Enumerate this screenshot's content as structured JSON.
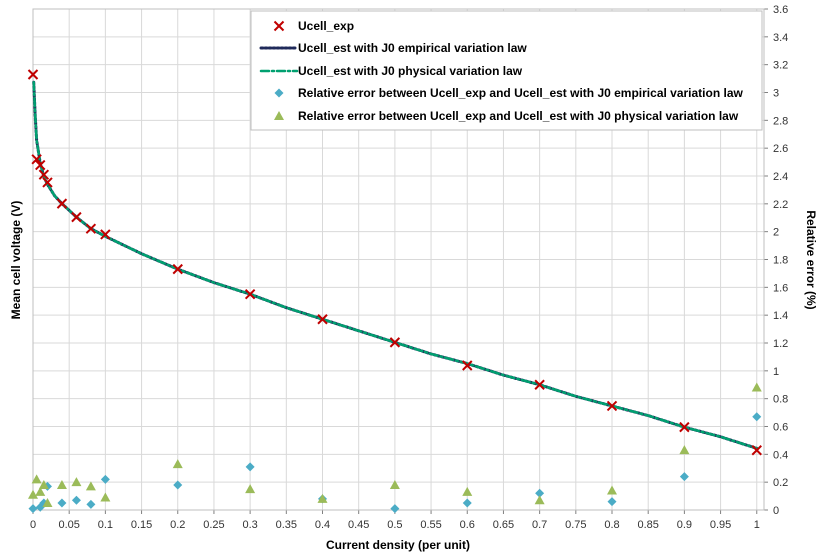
{
  "chart_data": {
    "type": "scatter",
    "xlabel": "Current density (per unit)",
    "ylabel": "Mean cell voltage (V)",
    "y2label": "Relative error (%)",
    "xlim": [
      0,
      1.01
    ],
    "ylim": [
      1,
      3.6
    ],
    "y2lim": [
      0,
      3.6
    ],
    "grid": true,
    "legend_position": "top-right",
    "x_ticks": [
      "0",
      "0.05",
      "0.1",
      "0.15",
      "0.2",
      "0.25",
      "0.3",
      "0.35",
      "0.4",
      "0.45",
      "0.5",
      "0.55",
      "0.6",
      "0.65",
      "0.7",
      "0.75",
      "0.8",
      "0.85",
      "0.9",
      "0.95",
      "1"
    ],
    "y_left_ticks": [],
    "y_right_ticks": [
      "0",
      "0.2",
      "0.4",
      "0.6",
      "0.8",
      "1",
      "1.2",
      "1.4",
      "1.6",
      "1.8",
      "2",
      "2.2",
      "2.4",
      "2.6",
      "2.8",
      "3",
      "3.2",
      "3.4",
      "3.6"
    ],
    "series": [
      {
        "name": "Ucell_exp",
        "axis": "left",
        "marker": "x",
        "color": "#c00000",
        "x": [
          0,
          0.005,
          0.01,
          0.015,
          0.02,
          0.04,
          0.06,
          0.08,
          0.1,
          0.2,
          0.3,
          0.4,
          0.5,
          0.6,
          0.7,
          0.8,
          0.9,
          1.0
        ],
        "y": [
          3.26,
          2.82,
          2.79,
          2.74,
          2.7,
          2.59,
          2.52,
          2.46,
          2.43,
          2.25,
          2.12,
          1.99,
          1.87,
          1.75,
          1.65,
          1.54,
          1.43,
          1.31
        ]
      },
      {
        "name": "Ucell_est with J0 empirical variation law",
        "axis": "left",
        "line": "dotted",
        "color": "#1f2a5a",
        "x": [
          0.001,
          0.003,
          0.005,
          0.01,
          0.015,
          0.02,
          0.03,
          0.04,
          0.06,
          0.08,
          0.1,
          0.15,
          0.2,
          0.25,
          0.3,
          0.35,
          0.4,
          0.45,
          0.5,
          0.55,
          0.6,
          0.65,
          0.7,
          0.75,
          0.8,
          0.85,
          0.9,
          0.95,
          1.0
        ],
        "y": [
          3.22,
          3.05,
          2.92,
          2.8,
          2.73,
          2.69,
          2.63,
          2.59,
          2.52,
          2.46,
          2.42,
          2.33,
          2.25,
          2.18,
          2.12,
          2.05,
          1.99,
          1.93,
          1.87,
          1.81,
          1.76,
          1.7,
          1.65,
          1.59,
          1.54,
          1.49,
          1.43,
          1.38,
          1.32
        ]
      },
      {
        "name": "Ucell_est with J0 physical variation law",
        "axis": "left",
        "line": "dash-dot",
        "color": "#00a070",
        "x": [
          0.001,
          0.003,
          0.005,
          0.01,
          0.015,
          0.02,
          0.03,
          0.04,
          0.06,
          0.08,
          0.1,
          0.15,
          0.2,
          0.25,
          0.3,
          0.35,
          0.4,
          0.45,
          0.5,
          0.55,
          0.6,
          0.65,
          0.7,
          0.75,
          0.8,
          0.85,
          0.9,
          0.95,
          1.0
        ],
        "y": [
          3.22,
          3.05,
          2.92,
          2.8,
          2.73,
          2.69,
          2.63,
          2.59,
          2.52,
          2.46,
          2.42,
          2.33,
          2.25,
          2.18,
          2.12,
          2.05,
          1.99,
          1.93,
          1.87,
          1.81,
          1.76,
          1.7,
          1.65,
          1.59,
          1.54,
          1.49,
          1.43,
          1.38,
          1.32
        ]
      },
      {
        "name": "Relative error between Ucell_exp and Ucell_est with J0 empirical variation law",
        "axis": "right",
        "marker": "diamond",
        "color": "#4bacc6",
        "x": [
          0,
          0.01,
          0.015,
          0.02,
          0.04,
          0.06,
          0.08,
          0.1,
          0.2,
          0.3,
          0.4,
          0.5,
          0.6,
          0.7,
          0.8,
          0.9,
          1.0
        ],
        "y": [
          0.01,
          0.02,
          0.05,
          0.17,
          0.05,
          0.07,
          0.04,
          0.22,
          0.18,
          0.31,
          0.08,
          0.01,
          0.05,
          0.12,
          0.06,
          0.24,
          0.67
        ]
      },
      {
        "name": "Relative error between Ucell_exp and Ucell_est with J0 physical variation law",
        "axis": "right",
        "marker": "triangle",
        "color": "#9bbb59",
        "x": [
          0,
          0.005,
          0.01,
          0.015,
          0.02,
          0.04,
          0.06,
          0.08,
          0.1,
          0.2,
          0.3,
          0.4,
          0.5,
          0.6,
          0.7,
          0.8,
          0.9,
          1.0
        ],
        "y": [
          0.11,
          0.22,
          0.13,
          0.18,
          0.05,
          0.18,
          0.2,
          0.17,
          0.09,
          0.33,
          0.15,
          0.08,
          0.18,
          0.13,
          0.07,
          0.14,
          0.43,
          0.88
        ]
      }
    ]
  }
}
